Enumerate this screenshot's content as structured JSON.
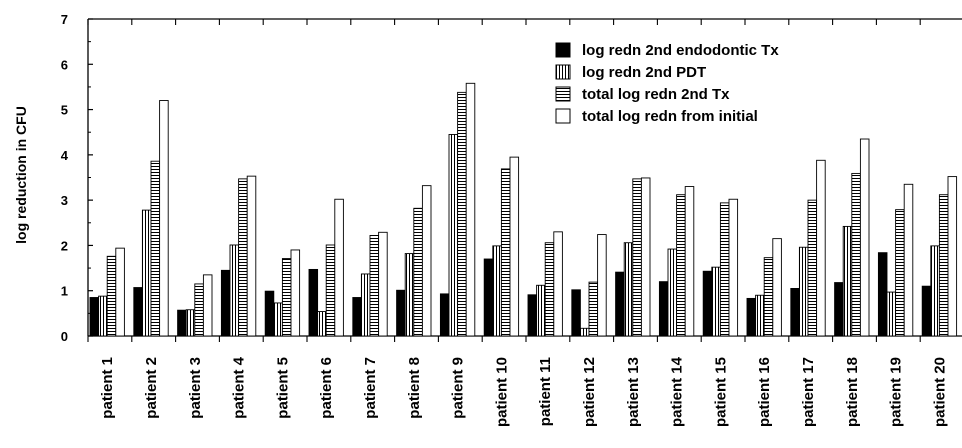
{
  "chart_data": {
    "type": "bar",
    "title": "",
    "xlabel": "",
    "ylabel": "log reduction in CFU",
    "ylim": [
      0,
      7
    ],
    "yticks": [
      "0",
      "1",
      "2",
      "3",
      "4",
      "5",
      "6",
      "7"
    ],
    "grid": false,
    "legend_position": "top-right",
    "categories": [
      "patient 1",
      "patient 2",
      "patient 3",
      "patient 4",
      "patient 5",
      "patient 6",
      "patient 7",
      "patient 8",
      "patient 9",
      "patient 10",
      "patient 11",
      "patient 12",
      "patient 13",
      "patient 14",
      "patient 15",
      "patient 16",
      "patient 17",
      "patient 18",
      "patient 19",
      "patient 20"
    ],
    "series": [
      {
        "name": "log redn 2nd endodontic Tx",
        "pattern": "solid",
        "values": [
          0.85,
          1.07,
          0.57,
          1.45,
          0.99,
          1.47,
          0.85,
          1.01,
          0.93,
          1.7,
          0.91,
          1.02,
          1.41,
          1.2,
          1.43,
          0.83,
          1.05,
          1.18,
          1.84,
          1.1
        ]
      },
      {
        "name": "log redn 2nd PDT",
        "pattern": "vertical",
        "values": [
          0.88,
          2.78,
          0.58,
          2.01,
          0.73,
          0.54,
          1.37,
          1.82,
          4.45,
          1.99,
          1.12,
          0.17,
          2.06,
          1.92,
          1.52,
          0.9,
          1.96,
          2.42,
          0.97,
          1.99
        ]
      },
      {
        "name": "total log redn 2nd Tx",
        "pattern": "horizontal",
        "values": [
          1.76,
          3.86,
          1.15,
          3.47,
          1.71,
          2.01,
          2.22,
          2.82,
          5.38,
          3.69,
          2.06,
          1.19,
          3.47,
          3.12,
          2.94,
          1.73,
          3.0,
          3.59,
          2.79,
          3.12
        ]
      },
      {
        "name": "total log redn from initial",
        "pattern": "empty",
        "values": [
          1.94,
          5.2,
          1.35,
          3.53,
          1.9,
          3.02,
          2.29,
          3.32,
          5.58,
          3.95,
          2.3,
          2.24,
          3.49,
          3.3,
          3.02,
          2.15,
          3.88,
          4.35,
          3.35,
          3.52
        ]
      }
    ]
  }
}
